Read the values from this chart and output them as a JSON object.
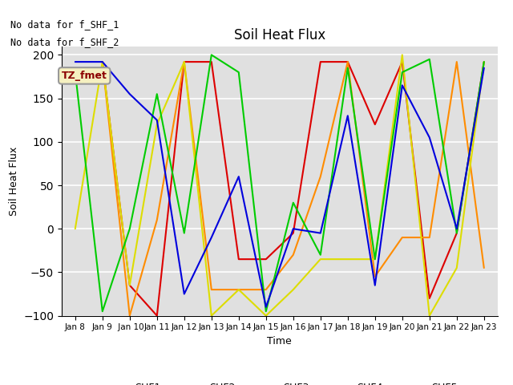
{
  "title": "Soil Heat Flux",
  "ylabel": "Soil Heat Flux",
  "xlabel": "Time",
  "ylim": [
    -100,
    210
  ],
  "yticks": [
    -100,
    -50,
    0,
    50,
    100,
    150,
    200
  ],
  "annotation_line1": "No data for f_SHF_1",
  "annotation_line2": "No data for f_SHF_2",
  "legend_label": "TZ_fmet",
  "plot_bg_color": "#e0e0e0",
  "fig_bg_color": "#ffffff",
  "x_labels": [
    "Jan 8",
    "Jan 9",
    " Jan 10",
    "Jan 11",
    "Jan 12",
    "Jan 13",
    "Jan 14",
    "Jan 15",
    "Jan 16",
    "Jan 17",
    "Jan 18",
    "Jan 19",
    "Jan 20",
    "Jan 21",
    "Jan 22",
    "Jan 23"
  ],
  "x_values": [
    0,
    1,
    2,
    3,
    4,
    5,
    6,
    7,
    8,
    9,
    10,
    11,
    12,
    13,
    14,
    15
  ],
  "series": {
    "SHF1": {
      "color": "#dd0000",
      "values": [
        null,
        192,
        -65,
        -100,
        192,
        192,
        -35,
        -35,
        -5,
        192,
        192,
        120,
        192,
        -80,
        -5,
        192
      ]
    },
    "SHF2": {
      "color": "#ff8c00",
      "values": [
        null,
        192,
        -100,
        10,
        192,
        -70,
        -70,
        -70,
        -30,
        60,
        192,
        -55,
        -10,
        -10,
        192,
        -45
      ]
    },
    "SHF3": {
      "color": "#dddd00",
      "values": [
        0,
        192,
        -65,
        120,
        192,
        -100,
        -70,
        -100,
        -70,
        -35,
        -35,
        -35,
        200,
        -100,
        -45,
        192
      ]
    },
    "SHF4": {
      "color": "#00cc00",
      "values": [
        180,
        -95,
        0,
        155,
        -5,
        200,
        180,
        -95,
        30,
        -30,
        185,
        -35,
        180,
        195,
        -5,
        192
      ]
    },
    "SHF5": {
      "color": "#0000dd",
      "values": [
        192,
        192,
        155,
        125,
        -75,
        -10,
        60,
        -90,
        0,
        -5,
        130,
        -65,
        165,
        105,
        0,
        185
      ]
    }
  }
}
